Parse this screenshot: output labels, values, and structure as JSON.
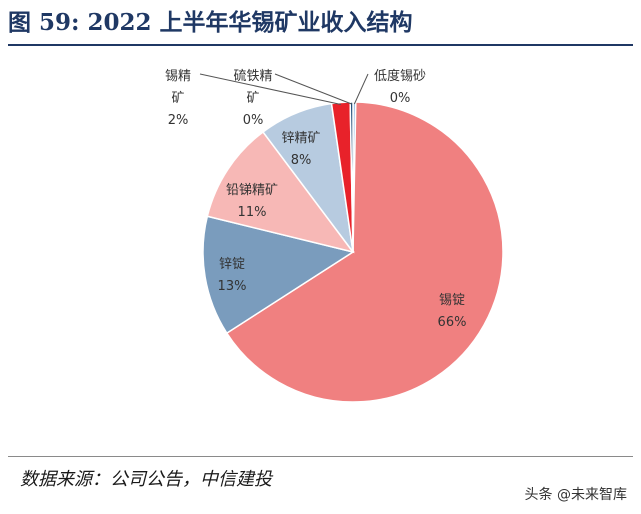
{
  "title": "图 59: 2022 上半年华锡矿业收入结构",
  "source": "数据来源：公司公告，中信建投",
  "watermark": "头条 @未来智库",
  "chart_data": {
    "type": "pie",
    "title": "图 59: 2022 上半年华锡矿业收入结构",
    "slices": [
      {
        "name": "锡锭",
        "value": 66,
        "label": "66%",
        "color": "#f08080"
      },
      {
        "name": "锌锭",
        "value": 13,
        "label": "13%",
        "color": "#7a9cbd"
      },
      {
        "name": "铅锑精矿",
        "value": 11,
        "label": "11%",
        "color": "#f7b8b6"
      },
      {
        "name": "锌精矿",
        "value": 8,
        "label": "8%",
        "color": "#b7cbe0"
      },
      {
        "name": "锡精矿",
        "value": 2,
        "label": "2%",
        "color": "#e8222a"
      },
      {
        "name": "硫铁精矿",
        "value": 0.3,
        "label": "0%",
        "color": "#1f4e79"
      },
      {
        "name": "低度锡砂",
        "value": 0.3,
        "label": "0%",
        "color": "#9dc3e6"
      }
    ],
    "legend": "none",
    "data_labels": "category name and percentage"
  }
}
